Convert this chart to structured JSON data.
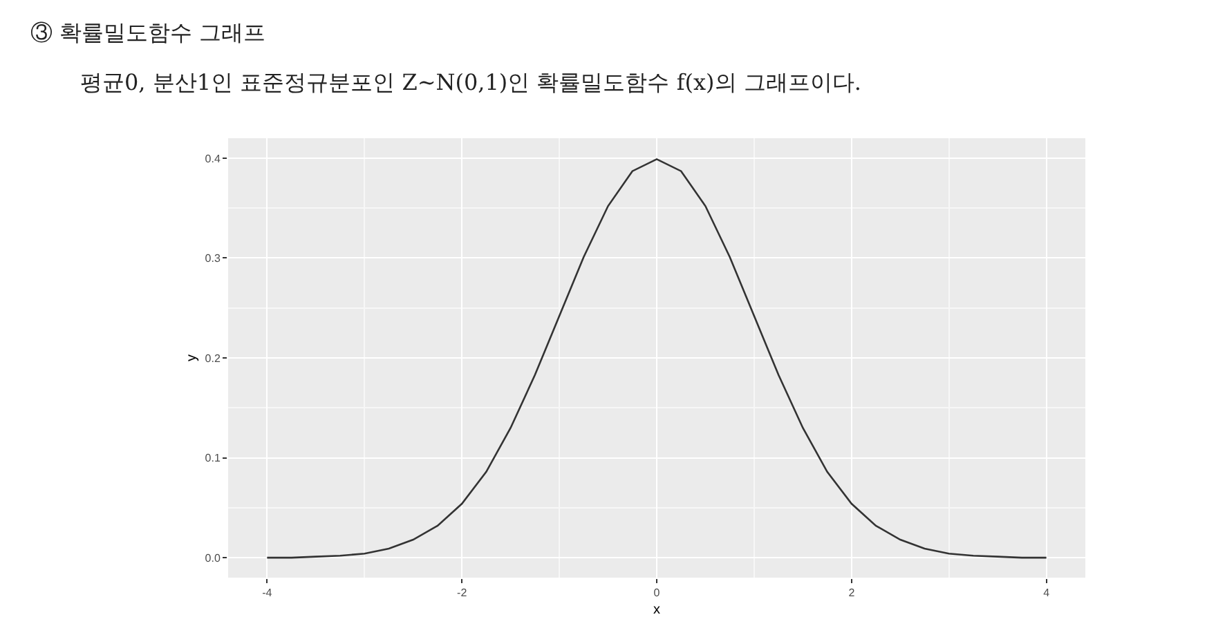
{
  "chart_data": {
    "type": "line",
    "title": "③ 확률밀도함수 그래프",
    "subtitle": "평균0, 분산1인 표준정규분포인  Z~N(0,1)인 확률밀도함수 f(x)의 그래프이다.",
    "xlabel": "x",
    "ylabel": "y",
    "x": [
      -4,
      -3.75,
      -3.5,
      -3.25,
      -3,
      -2.75,
      -2.5,
      -2.25,
      -2,
      -1.75,
      -1.5,
      -1.25,
      -1,
      -0.75,
      -0.5,
      -0.25,
      0,
      0.25,
      0.5,
      0.75,
      1,
      1.25,
      1.5,
      1.75,
      2,
      2.25,
      2.5,
      2.75,
      3,
      3.25,
      3.5,
      3.75,
      4
    ],
    "series": [
      {
        "color": "#333333",
        "values": [
          0.0,
          0.0,
          0.001,
          0.002,
          0.004,
          0.009,
          0.018,
          0.032,
          0.054,
          0.086,
          0.13,
          0.183,
          0.242,
          0.301,
          0.352,
          0.387,
          0.399,
          0.387,
          0.352,
          0.301,
          0.242,
          0.183,
          0.13,
          0.086,
          0.054,
          0.032,
          0.018,
          0.009,
          0.004,
          0.002,
          0.001,
          0.0,
          0.0
        ]
      }
    ],
    "xlim": [
      -4.4,
      4.4
    ],
    "ylim": [
      -0.02,
      0.42
    ],
    "xticks": [
      {
        "value": -4,
        "label": "-4"
      },
      {
        "value": -2,
        "label": "-2"
      },
      0,
      2,
      4
    ],
    "yticks": [
      {
        "value": 0,
        "label": "0.0"
      },
      0.1,
      0.2,
      0.3,
      0.4
    ],
    "grid": true,
    "legend": false,
    "marker": "none",
    "line_style": "solid"
  }
}
